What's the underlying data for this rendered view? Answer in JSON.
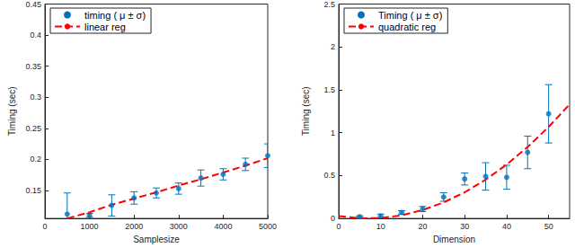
{
  "chart_data": [
    {
      "type": "scatter",
      "xlabel": "Samplesize",
      "ylabel": "Timing (sec)",
      "xlim": [
        0,
        5000
      ],
      "xticks": [
        0,
        1000,
        2000,
        3000,
        4000,
        5000
      ],
      "ylim": [
        0.105,
        0.45
      ],
      "yticks": [
        0.15,
        0.2,
        0.25,
        0.3,
        0.35,
        0.4,
        0.45
      ],
      "grid": false,
      "legend": "upper left",
      "series": [
        {
          "name": "timing ( μ ± σ)",
          "type": "scatter",
          "marker": "circle",
          "color": "#0072bd",
          "x": [
            500,
            1000,
            1500,
            2000,
            2500,
            3000,
            3500,
            4000,
            4500,
            5000
          ],
          "values": [
            0.112,
            0.11,
            0.126,
            0.138,
            0.146,
            0.153,
            0.17,
            0.176,
            0.192,
            0.206
          ],
          "errors": [
            0.034,
            0.003,
            0.017,
            0.01,
            0.008,
            0.009,
            0.013,
            0.009,
            0.01,
            0.019
          ]
        },
        {
          "name": "linear reg",
          "type": "line",
          "line_style": "dashed",
          "color": "#ff0000",
          "x": [
            500,
            1000,
            1500,
            2000,
            2500,
            3000,
            3500,
            4000,
            4500,
            5000
          ],
          "values": [
            0.105,
            0.115,
            0.127,
            0.137,
            0.147,
            0.158,
            0.168,
            0.179,
            0.19,
            0.202
          ]
        }
      ]
    },
    {
      "type": "scatter",
      "xlabel": "Dimension",
      "ylabel": "Timing (sec)",
      "xlim": [
        0,
        55
      ],
      "xticks": [
        0,
        10,
        20,
        30,
        40,
        50
      ],
      "ylim": [
        0,
        2.5
      ],
      "yticks": [
        0,
        0.5,
        1,
        1.5,
        2,
        2.5
      ],
      "grid": false,
      "legend": "upper left",
      "series": [
        {
          "name": "Timing ( μ ± σ)",
          "type": "scatter",
          "marker": "circle",
          "color": "#0072bd",
          "x": [
            5,
            10,
            15,
            20,
            25,
            30,
            35,
            40,
            45,
            50
          ],
          "values": [
            0.02,
            0.03,
            0.07,
            0.11,
            0.25,
            0.46,
            0.49,
            0.48,
            0.77,
            1.22
          ],
          "errors": [
            0.01,
            0.02,
            0.02,
            0.03,
            0.05,
            0.07,
            0.16,
            0.14,
            0.19,
            0.34
          ]
        },
        {
          "name": "quadratic reg",
          "type": "line",
          "line_style": "dashed",
          "color": "#ff0000",
          "x": [
            0,
            5,
            10,
            15,
            20,
            25,
            30,
            35,
            40,
            45,
            50,
            55
          ],
          "values": [
            0.028,
            0.002,
            0.005,
            0.037,
            0.098,
            0.187,
            0.305,
            0.452,
            0.628,
            0.833,
            1.067,
            1.33
          ]
        }
      ]
    }
  ]
}
